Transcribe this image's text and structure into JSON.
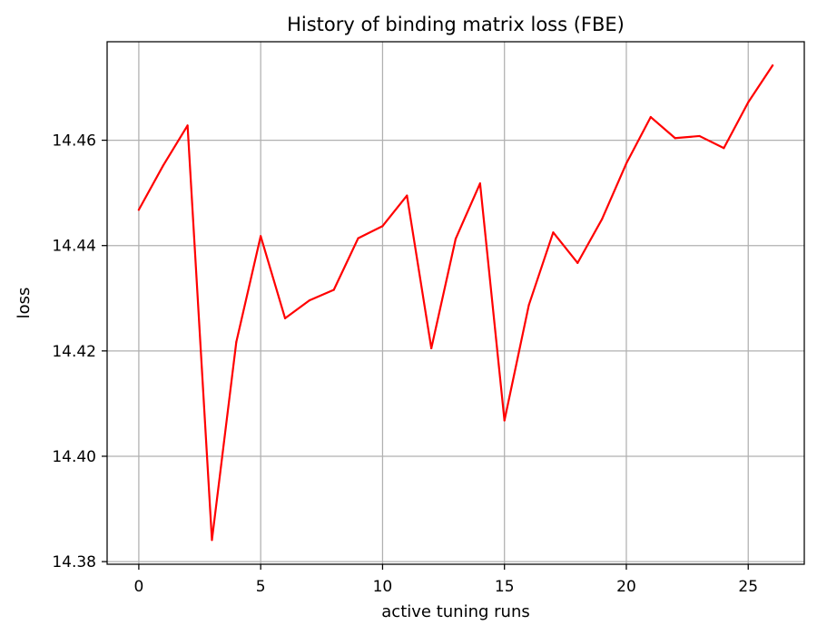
{
  "chart_data": {
    "type": "line",
    "title": "History of binding matrix loss (FBE)",
    "xlabel": "active tuning runs",
    "ylabel": "loss",
    "xlim": [
      -1.3,
      27.3
    ],
    "ylim": [
      14.3795,
      14.4787
    ],
    "x_ticks": [
      0,
      5,
      10,
      15,
      20,
      25
    ],
    "x_tick_labels": [
      "0",
      "5",
      "10",
      "15",
      "20",
      "25"
    ],
    "y_ticks": [
      14.38,
      14.4,
      14.42,
      14.44,
      14.46
    ],
    "y_tick_labels": [
      "14.38",
      "14.40",
      "14.42",
      "14.44",
      "14.46"
    ],
    "grid": true,
    "legend": "none",
    "series": [
      {
        "color": "#ff0000",
        "x": [
          0,
          1,
          2,
          3,
          4,
          5,
          6,
          7,
          8,
          9,
          10,
          11,
          12,
          13,
          14,
          15,
          16,
          17,
          18,
          19,
          20,
          21,
          22,
          23,
          24,
          25,
          26
        ],
        "values": [
          14.4468,
          14.4552,
          14.4628,
          14.3841,
          14.4217,
          14.4418,
          14.4262,
          14.4296,
          14.4316,
          14.4414,
          14.4437,
          14.4495,
          14.4205,
          14.4413,
          14.4518,
          14.4068,
          14.4287,
          14.4425,
          14.4367,
          14.445,
          14.4556,
          14.4644,
          14.4604,
          14.4608,
          14.4585,
          14.4672,
          14.4742
        ]
      }
    ],
    "colors": {
      "line": "#ff0000",
      "grid": "#b0b0b0",
      "axes": "#000000",
      "background": "#ffffff"
    }
  }
}
